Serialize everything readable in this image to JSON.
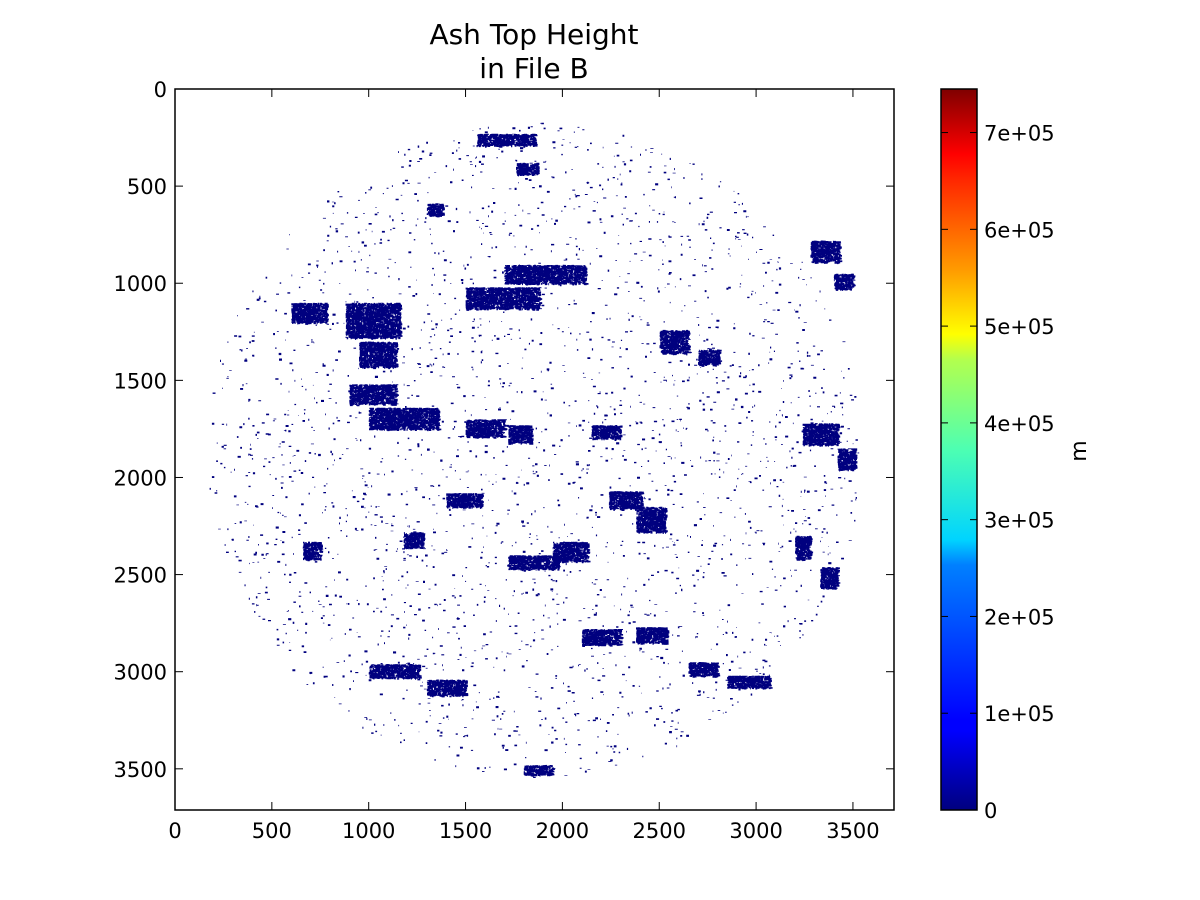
{
  "chart_data": {
    "type": "heatmap",
    "title": [
      "Ash Top Height",
      "in File B"
    ],
    "xlabel": "",
    "ylabel": "",
    "xlim": [
      0,
      3712
    ],
    "ylim": [
      3712,
      0
    ],
    "y_inverted": true,
    "x_ticks": [
      "0",
      "500",
      "1000",
      "1500",
      "2000",
      "2500",
      "3000",
      "3500"
    ],
    "y_ticks": [
      "0",
      "500",
      "1000",
      "1500",
      "2000",
      "2500",
      "3000",
      "3500"
    ],
    "x_tick_values": [
      0,
      500,
      1000,
      1500,
      2000,
      2500,
      3000,
      3500
    ],
    "y_tick_values": [
      0,
      500,
      1000,
      1500,
      2000,
      2500,
      3000,
      3500
    ],
    "grid": false,
    "colormap": "jet",
    "colorbar": {
      "label": "m",
      "range": [
        0,
        745000
      ],
      "tick_values": [
        0,
        100000,
        200000,
        300000,
        400000,
        500000,
        600000,
        700000
      ],
      "tick_labels": [
        "0",
        "1e+05",
        "2e+05",
        "3e+05",
        "4e+05",
        "5e+05",
        "6e+05",
        "7e+05"
      ]
    },
    "disk": {
      "center_x": 1856,
      "center_y": 1856,
      "radius": 1690
    },
    "data_value_shown": 0,
    "data_color": "#00007f",
    "patches": [
      {
        "x": 1700,
        "y": 905,
        "w": 420,
        "h": 95
      },
      {
        "x": 1500,
        "y": 1020,
        "w": 380,
        "h": 110
      },
      {
        "x": 880,
        "y": 1100,
        "w": 280,
        "h": 180
      },
      {
        "x": 950,
        "y": 1300,
        "w": 190,
        "h": 130
      },
      {
        "x": 1000,
        "y": 1640,
        "w": 360,
        "h": 110
      },
      {
        "x": 1500,
        "y": 1700,
        "w": 200,
        "h": 90
      },
      {
        "x": 1720,
        "y": 1730,
        "w": 120,
        "h": 90
      },
      {
        "x": 3280,
        "y": 780,
        "w": 150,
        "h": 110
      },
      {
        "x": 3400,
        "y": 950,
        "w": 100,
        "h": 80
      },
      {
        "x": 3240,
        "y": 1720,
        "w": 180,
        "h": 110
      },
      {
        "x": 3420,
        "y": 1850,
        "w": 90,
        "h": 110
      },
      {
        "x": 2240,
        "y": 2070,
        "w": 170,
        "h": 90
      },
      {
        "x": 2380,
        "y": 2150,
        "w": 150,
        "h": 130
      },
      {
        "x": 1950,
        "y": 2330,
        "w": 180,
        "h": 100
      },
      {
        "x": 1720,
        "y": 2400,
        "w": 260,
        "h": 70
      },
      {
        "x": 2100,
        "y": 2780,
        "w": 200,
        "h": 80
      },
      {
        "x": 2380,
        "y": 2770,
        "w": 160,
        "h": 80
      },
      {
        "x": 2500,
        "y": 1240,
        "w": 150,
        "h": 120
      },
      {
        "x": 2700,
        "y": 1340,
        "w": 110,
        "h": 80
      },
      {
        "x": 1400,
        "y": 2080,
        "w": 180,
        "h": 70
      },
      {
        "x": 1760,
        "y": 380,
        "w": 110,
        "h": 60
      },
      {
        "x": 1560,
        "y": 230,
        "w": 300,
        "h": 60
      },
      {
        "x": 1000,
        "y": 2960,
        "w": 260,
        "h": 70
      },
      {
        "x": 660,
        "y": 2330,
        "w": 90,
        "h": 90
      },
      {
        "x": 1180,
        "y": 2280,
        "w": 100,
        "h": 80
      },
      {
        "x": 2850,
        "y": 3020,
        "w": 220,
        "h": 60
      },
      {
        "x": 1800,
        "y": 3480,
        "w": 150,
        "h": 50
      },
      {
        "x": 900,
        "y": 1520,
        "w": 240,
        "h": 100
      },
      {
        "x": 2650,
        "y": 2950,
        "w": 150,
        "h": 70
      },
      {
        "x": 3200,
        "y": 2300,
        "w": 80,
        "h": 120
      },
      {
        "x": 3330,
        "y": 2460,
        "w": 90,
        "h": 110
      },
      {
        "x": 600,
        "y": 1100,
        "w": 180,
        "h": 100
      },
      {
        "x": 1300,
        "y": 590,
        "w": 80,
        "h": 60
      },
      {
        "x": 2150,
        "y": 1730,
        "w": 150,
        "h": 70
      },
      {
        "x": 1300,
        "y": 3040,
        "w": 200,
        "h": 80
      }
    ]
  }
}
